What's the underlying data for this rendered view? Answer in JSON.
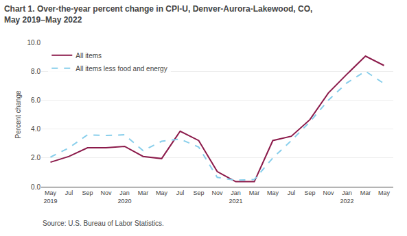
{
  "chart_data": {
    "type": "line",
    "title": "Chart 1. Over-the-year percent change in CPI-U, Denver-Aurora-Lakewood, CO,\nMay 2019–May 2022",
    "y_label": "Percent change",
    "annotations": [
      "Source: U.S. Bureau of Labor Statistics."
    ],
    "categories": [
      "May\n2019",
      "Jul",
      "Sep",
      "Nov",
      "Jan\n2020",
      "Mar",
      "May",
      "Jul",
      "Sep",
      "Nov",
      "Jan\n2021",
      "Mar",
      "May",
      "Jul",
      "Sep",
      "Nov",
      "Jan\n2022",
      "Mar",
      "May"
    ],
    "series": [
      {
        "name": "All items",
        "color": "#8B1A4A",
        "line_style": "solid",
        "values": [
          1.7,
          2.1,
          2.7,
          2.7,
          2.8,
          2.1,
          1.95,
          3.85,
          3.2,
          1.05,
          0.35,
          0.35,
          3.2,
          3.5,
          4.65,
          6.5,
          7.8,
          9.05,
          8.4
        ]
      },
      {
        "name": "All items less food and energy",
        "color": "#87CEEB",
        "line_style": "dashed",
        "values": [
          2.05,
          2.7,
          3.6,
          3.55,
          3.6,
          2.5,
          3.15,
          3.3,
          2.75,
          0.65,
          0.45,
          0.5,
          2.0,
          3.2,
          4.5,
          6.0,
          7.2,
          8.0,
          7.15
        ]
      }
    ],
    "ylim": [
      0.0,
      10.0
    ],
    "yticks": [
      {
        "value": 0.0,
        "label": "0.0"
      },
      {
        "value": 2.0,
        "label": "2.0"
      },
      {
        "value": 4.0,
        "label": "4.0"
      },
      {
        "value": 6.0,
        "label": "6.0"
      },
      {
        "value": 8.0,
        "label": "8.0"
      },
      {
        "value": 10.0,
        "label": "10.0"
      }
    ],
    "grid": true,
    "legend": "upper left"
  }
}
